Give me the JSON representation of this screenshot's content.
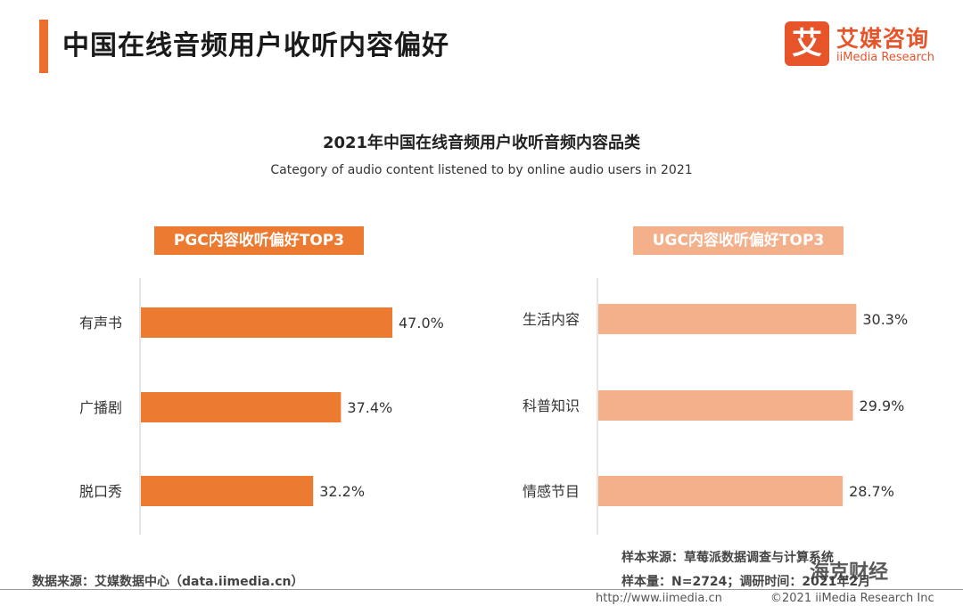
{
  "header": {
    "title": "中国在线音频用户收听内容偏好"
  },
  "logo": {
    "mark": "艾",
    "name_cn": "艾媒咨询",
    "name_en": "iiMedia Research"
  },
  "footer": {
    "source_left": "数据来源：艾媒数据中心（data.iimedia.cn）",
    "sample_source": "样本来源：草莓派数据调查与计算系统",
    "sample_size": "样本量：N=2724；调研时间：2021年2月",
    "url": "http://www.iimedia.cn",
    "copyright": "©2021  iiMedia Research  Inc"
  },
  "watermark": "海克财经",
  "colors": {
    "accent": "#ec6f2d",
    "pgc_bar": "#ec7a30",
    "ugc_bar": "#f3b08a"
  },
  "chart_data": [
    {
      "type": "bar",
      "orientation": "horizontal",
      "title": "2021年中国在线音频用户收听音频内容品类",
      "subtitle": "Category of audio content listened to by online audio users in 2021",
      "panel_title": "PGC内容收听偏好TOP3",
      "categories": [
        "有声书",
        "广播剧",
        "脱口秀"
      ],
      "values": [
        47.0,
        37.4,
        32.2
      ],
      "value_labels": [
        "47.0%",
        "37.4%",
        "32.2%"
      ],
      "unit": "%"
    },
    {
      "type": "bar",
      "orientation": "horizontal",
      "panel_title": "UGC内容收听偏好TOP3",
      "categories": [
        "生活内容",
        "科普知识",
        "情感节目"
      ],
      "values": [
        30.3,
        29.9,
        28.7
      ],
      "value_labels": [
        "30.3%",
        "29.9%",
        "28.7%"
      ],
      "unit": "%"
    }
  ]
}
